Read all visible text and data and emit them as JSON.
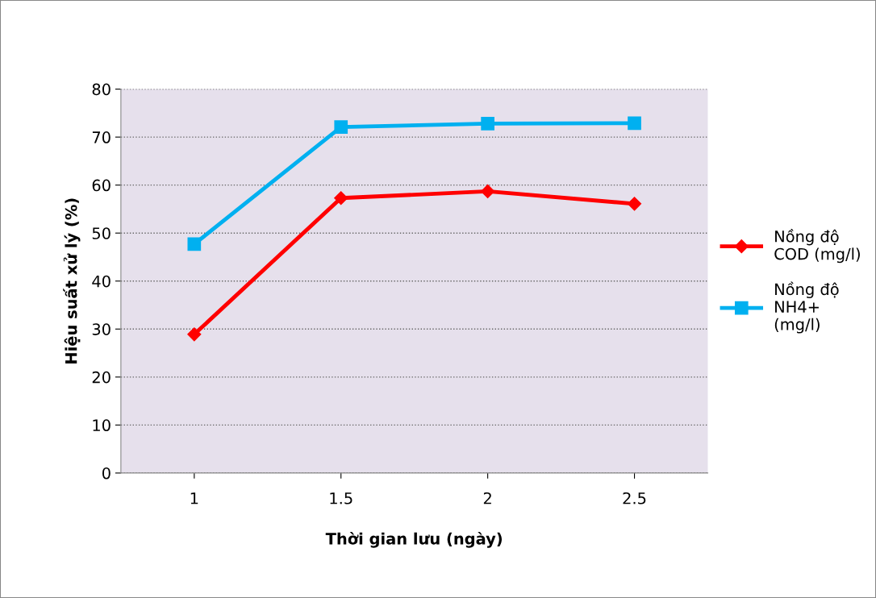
{
  "chart_data": {
    "type": "line",
    "xlabel": "Thời gian lưu (ngày)",
    "ylabel": "Hiệu suất xử lý (%)",
    "categories": [
      "1",
      "1.5",
      "2",
      "2.5"
    ],
    "series": [
      {
        "name": "Nồng độ COD (mg/l)",
        "color": "#ff0000",
        "marker": "diamond",
        "values": [
          28.9,
          57.3,
          58.7,
          56.1
        ]
      },
      {
        "name": "Nồng độ NH4+ (mg/l)",
        "color": "#00b0f0",
        "marker": "square",
        "values": [
          47.7,
          72.1,
          72.8,
          72.9
        ]
      }
    ],
    "ylim": [
      0,
      80
    ],
    "yticks": [
      0,
      10,
      20,
      30,
      40,
      50,
      60,
      70,
      80
    ],
    "grid": "y",
    "legend": "right"
  }
}
